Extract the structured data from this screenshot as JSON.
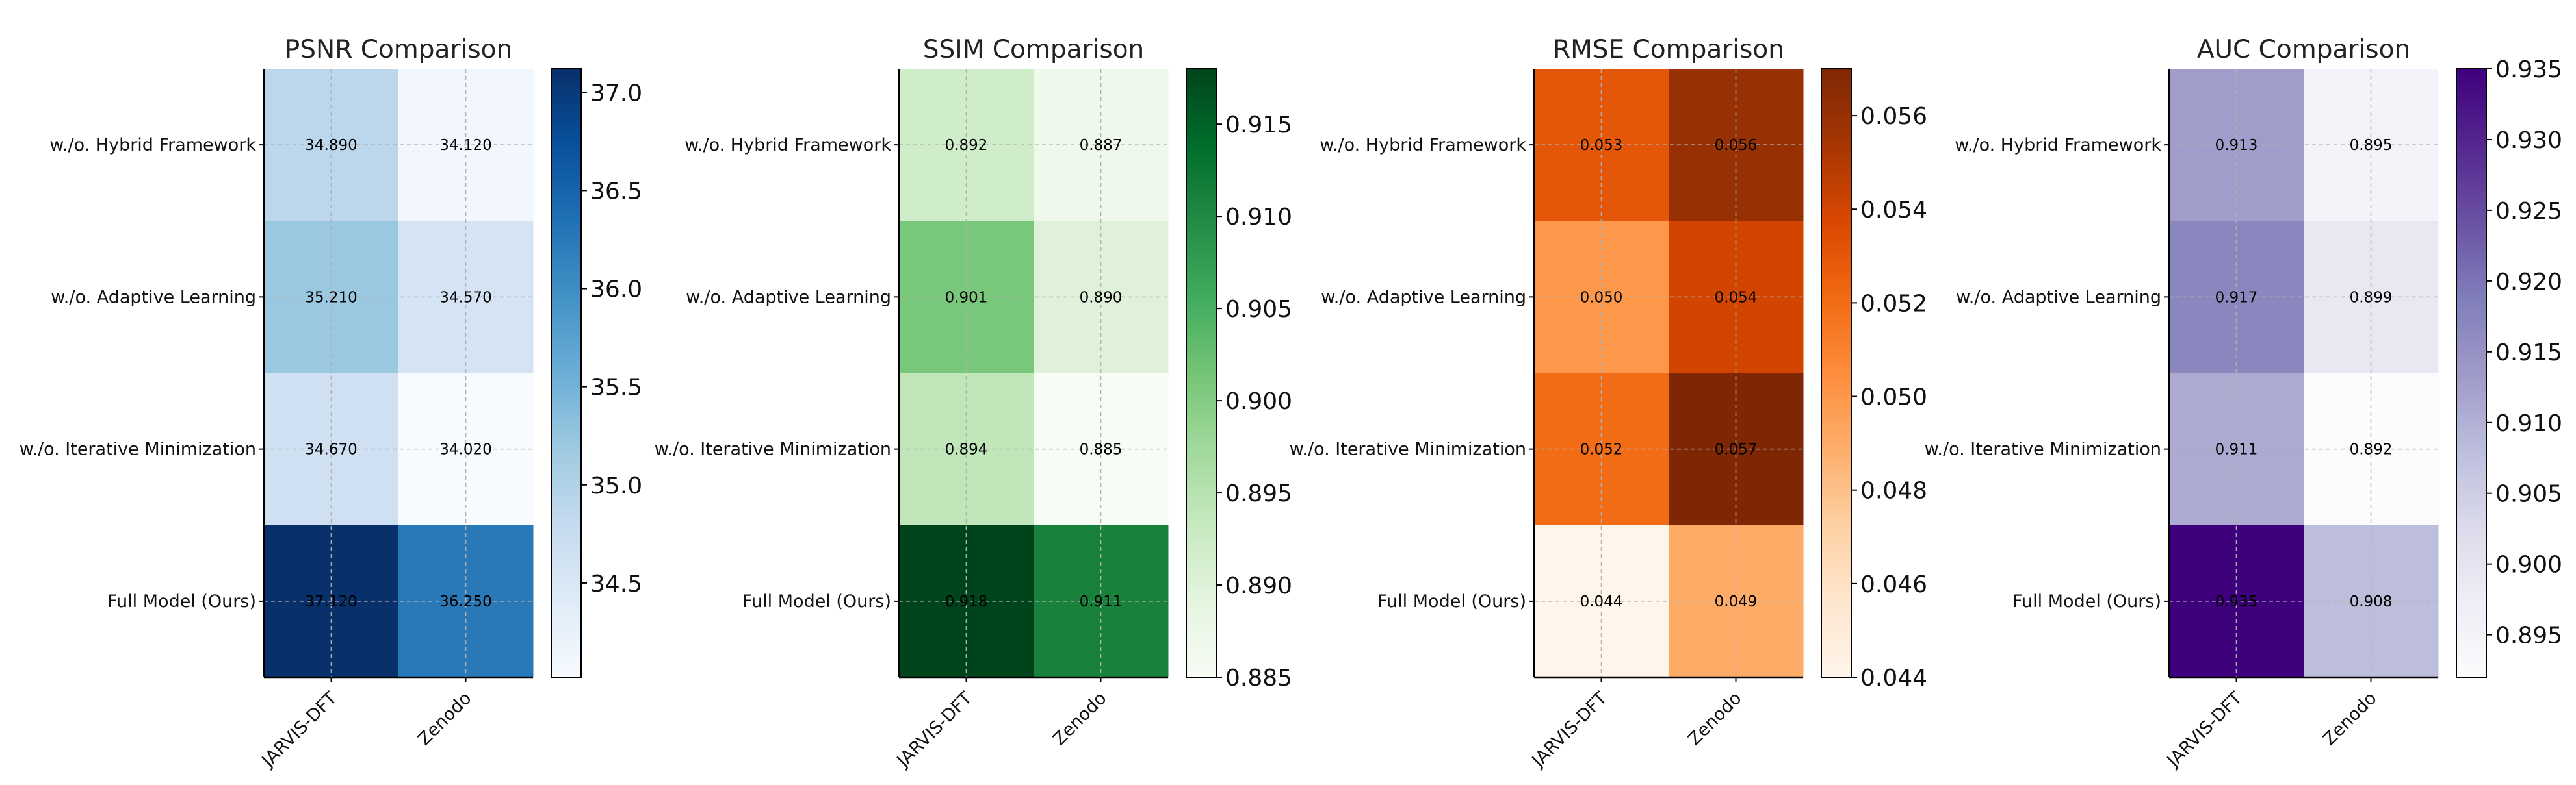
{
  "chart_data": [
    {
      "type": "heatmap",
      "title": "PSNR Comparison",
      "columns": [
        "JARVIS-DFT",
        "Zenodo"
      ],
      "rows": [
        "w./o. Hybrid Framework",
        "w./o. Adaptive Learning",
        "w./o. Iterative Minimization",
        "Full Model (Ours)"
      ],
      "values": [
        [
          34.89,
          34.12
        ],
        [
          35.21,
          34.57
        ],
        [
          34.67,
          34.02
        ],
        [
          37.12,
          36.25
        ]
      ],
      "value_labels": [
        [
          "34.890",
          "34.120"
        ],
        [
          "35.210",
          "34.570"
        ],
        [
          "34.670",
          "34.020"
        ],
        [
          "37.120",
          "36.250"
        ]
      ],
      "colorbar_range": [
        34.02,
        37.12
      ],
      "colorbar_ticks": [
        34.5,
        35.0,
        35.5,
        36.0,
        36.5,
        37.0
      ],
      "colorbar_tick_labels": [
        "34.5",
        "35.0",
        "35.5",
        "36.0",
        "36.5",
        "37.0"
      ],
      "colormap": [
        "#f7fbff",
        "#deebf7",
        "#c6dbef",
        "#9ecae1",
        "#6baed6",
        "#4292c6",
        "#2171b5",
        "#08519c",
        "#08306b"
      ],
      "grid": true
    },
    {
      "type": "heatmap",
      "title": "SSIM Comparison",
      "columns": [
        "JARVIS-DFT",
        "Zenodo"
      ],
      "rows": [
        "w./o. Hybrid Framework",
        "w./o. Adaptive Learning",
        "w./o. Iterative Minimization",
        "Full Model (Ours)"
      ],
      "values": [
        [
          0.892,
          0.887
        ],
        [
          0.901,
          0.89
        ],
        [
          0.894,
          0.885
        ],
        [
          0.918,
          0.911
        ]
      ],
      "value_labels": [
        [
          "0.892",
          "0.887"
        ],
        [
          "0.901",
          "0.890"
        ],
        [
          "0.894",
          "0.885"
        ],
        [
          "0.918",
          "0.911"
        ]
      ],
      "colorbar_range": [
        0.885,
        0.918
      ],
      "colorbar_ticks": [
        0.885,
        0.89,
        0.895,
        0.9,
        0.905,
        0.91,
        0.915
      ],
      "colorbar_tick_labels": [
        "0.885",
        "0.890",
        "0.895",
        "0.900",
        "0.905",
        "0.910",
        "0.915"
      ],
      "colormap": [
        "#f7fcf5",
        "#e5f5e0",
        "#c7e9c0",
        "#a1d99b",
        "#74c476",
        "#41ab5d",
        "#238b45",
        "#006d2c",
        "#00441b"
      ],
      "grid": true
    },
    {
      "type": "heatmap",
      "title": "RMSE Comparison",
      "columns": [
        "JARVIS-DFT",
        "Zenodo"
      ],
      "rows": [
        "w./o. Hybrid Framework",
        "w./o. Adaptive Learning",
        "w./o. Iterative Minimization",
        "Full Model (Ours)"
      ],
      "values": [
        [
          0.053,
          0.056
        ],
        [
          0.05,
          0.054
        ],
        [
          0.052,
          0.057
        ],
        [
          0.044,
          0.049
        ]
      ],
      "value_labels": [
        [
          "0.053",
          "0.056"
        ],
        [
          "0.050",
          "0.054"
        ],
        [
          "0.052",
          "0.057"
        ],
        [
          "0.044",
          "0.049"
        ]
      ],
      "colorbar_range": [
        0.044,
        0.057
      ],
      "colorbar_ticks": [
        0.044,
        0.046,
        0.048,
        0.05,
        0.052,
        0.054,
        0.056
      ],
      "colorbar_tick_labels": [
        "0.044",
        "0.046",
        "0.048",
        "0.050",
        "0.052",
        "0.054",
        "0.056"
      ],
      "colormap": [
        "#fff5eb",
        "#fee6ce",
        "#fdd0a2",
        "#fdae6b",
        "#fd8d3c",
        "#f16913",
        "#d94801",
        "#a63603",
        "#7f2704"
      ],
      "grid": true
    },
    {
      "type": "heatmap",
      "title": "AUC Comparison",
      "columns": [
        "JARVIS-DFT",
        "Zenodo"
      ],
      "rows": [
        "w./o. Hybrid Framework",
        "w./o. Adaptive Learning",
        "w./o. Iterative Minimization",
        "Full Model (Ours)"
      ],
      "values": [
        [
          0.913,
          0.895
        ],
        [
          0.917,
          0.899
        ],
        [
          0.911,
          0.892
        ],
        [
          0.935,
          0.908
        ]
      ],
      "value_labels": [
        [
          "0.913",
          "0.895"
        ],
        [
          "0.917",
          "0.899"
        ],
        [
          "0.911",
          "0.892"
        ],
        [
          "0.935",
          "0.908"
        ]
      ],
      "colorbar_range": [
        0.892,
        0.935
      ],
      "colorbar_ticks": [
        0.895,
        0.9,
        0.905,
        0.91,
        0.915,
        0.92,
        0.925,
        0.93,
        0.935
      ],
      "colorbar_tick_labels": [
        "0.895",
        "0.900",
        "0.905",
        "0.910",
        "0.915",
        "0.920",
        "0.925",
        "0.930",
        "0.935"
      ],
      "colormap": [
        "#fcfbfd",
        "#efedf5",
        "#dadaeb",
        "#bcbddc",
        "#9e9ac8",
        "#807dba",
        "#6a51a3",
        "#54278f",
        "#3f007d"
      ],
      "grid": true
    }
  ]
}
